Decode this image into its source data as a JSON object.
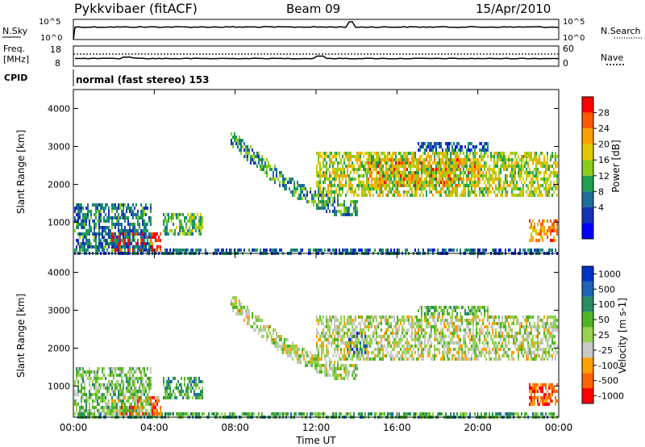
{
  "header": {
    "station": "Pykkvibaer (fitACF)",
    "beam": "Beam 09",
    "date": "15/Apr/2010"
  },
  "top_panels": {
    "nsky_label": "N.Sky",
    "nsky_ticks": [
      "10^5",
      "10^0"
    ],
    "nsearch_label": "N.Search",
    "nsearch_ticks": [
      "10^5",
      "10^0"
    ],
    "freq_label": "Freq.",
    "freq_unit": "[MHz]",
    "freq_ticks": [
      "18",
      "8"
    ],
    "nave_label": "Nave",
    "nave_ticks": [
      "60",
      "0"
    ],
    "cpid_label": "CPID",
    "cpid_value": "normal (fast stereo) 153"
  },
  "chart_data": [
    {
      "type": "heatmap",
      "name": "power",
      "ylabel": "Slant Range [km]",
      "ylim": [
        180,
        4500
      ],
      "yticks": [
        "4000",
        "3000",
        "2000",
        "1000"
      ],
      "xlim_hours": [
        0,
        24
      ],
      "xticks": [
        "00:00",
        "04:00",
        "08:00",
        "12:00",
        "16:00",
        "20:00",
        "00:00"
      ],
      "colorbar": {
        "label": "Power [dB]",
        "ticks": [
          "28",
          "24",
          "20",
          "16",
          "12",
          "8",
          "4"
        ],
        "colors": [
          "#ff0000",
          "#ff5a00",
          "#ffa000",
          "#e0c800",
          "#8ccc1e",
          "#1ea050",
          "#1e6e9b",
          "#1432b4",
          "#0000ff"
        ]
      },
      "regions": [
        {
          "t0": 0.0,
          "t1": 3.8,
          "r0": 300,
          "r1": 1500,
          "level": 0.3
        },
        {
          "t0": 1.8,
          "t1": 4.3,
          "r0": 250,
          "r1": 800,
          "level": 0.95
        },
        {
          "t0": 4.4,
          "t1": 6.4,
          "r0": 700,
          "r1": 1300,
          "level": 0.45
        },
        {
          "t0": 0.0,
          "t1": 24.0,
          "r0": 180,
          "r1": 320,
          "level": 0.25
        },
        {
          "t0": 7.7,
          "t1": 14.0,
          "r0": 1400,
          "r1": 3300,
          "level": 0.35,
          "arc": true
        },
        {
          "t0": 12.0,
          "t1": 24.0,
          "r0": 1700,
          "r1": 2900,
          "level": 0.55
        },
        {
          "t0": 14.5,
          "t1": 20.0,
          "r0": 2000,
          "r1": 2700,
          "level": 0.8
        },
        {
          "t0": 17.0,
          "t1": 20.5,
          "r0": 2900,
          "r1": 3200,
          "level": 0.2
        },
        {
          "t0": 22.5,
          "t1": 24.0,
          "r0": 500,
          "r1": 1100,
          "level": 0.75
        }
      ]
    },
    {
      "type": "heatmap",
      "name": "velocity",
      "ylabel": "Slant Range [km]",
      "ylim": [
        180,
        4500
      ],
      "yticks": [
        "4000",
        "3000",
        "2000",
        "1000"
      ],
      "xlim_hours": [
        0,
        24
      ],
      "xticks": [
        "00:00",
        "04:00",
        "08:00",
        "12:00",
        "16:00",
        "20:00",
        "00:00"
      ],
      "xlabel": "Time UT",
      "colorbar": {
        "label": "Velocity [m s-1]",
        "ticks": [
          "1000",
          "500",
          "100",
          "50",
          "25",
          "-25",
          "-100",
          "-500",
          "-1000"
        ],
        "colors": [
          "#0032c8",
          "#1e64b4",
          "#288c64",
          "#50b428",
          "#96d250",
          "#c8c8c8",
          "#ffa000",
          "#ff6400",
          "#ff0000"
        ]
      },
      "regions": [
        {
          "t0": 0.0,
          "t1": 3.8,
          "r0": 300,
          "r1": 1500,
          "level": 0.45
        },
        {
          "t0": 1.8,
          "t1": 4.3,
          "r0": 250,
          "r1": 800,
          "level": 0.8
        },
        {
          "t0": 4.4,
          "t1": 6.4,
          "r0": 700,
          "r1": 1300,
          "level": 0.35
        },
        {
          "t0": 0.0,
          "t1": 24.0,
          "r0": 180,
          "r1": 320,
          "level": 0.35
        },
        {
          "t0": 7.7,
          "t1": 14.0,
          "r0": 1400,
          "r1": 3300,
          "level": 0.55,
          "arc": true
        },
        {
          "t0": 12.0,
          "t1": 24.0,
          "r0": 1700,
          "r1": 2900,
          "level": 0.55
        },
        {
          "t0": 13.5,
          "t1": 14.5,
          "r0": 1800,
          "r1": 2500,
          "level": 0.2
        },
        {
          "t0": 17.0,
          "t1": 20.5,
          "r0": 2900,
          "r1": 3200,
          "level": 0.4
        },
        {
          "t0": 22.5,
          "t1": 24.0,
          "r0": 500,
          "r1": 1100,
          "level": 0.85
        }
      ]
    }
  ]
}
